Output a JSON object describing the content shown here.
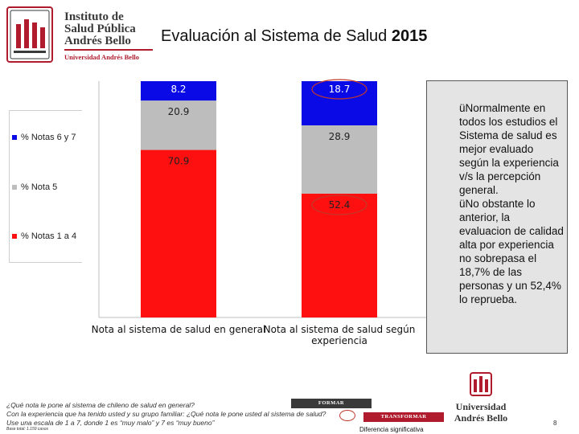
{
  "logo": {
    "lines": [
      "Instituto de",
      "Salud Pública",
      "Andrés Bello"
    ],
    "sub": "Universidad Andrés Bello"
  },
  "title": {
    "main": "Evaluación al Sistema de Salud",
    "year": "2015"
  },
  "chart_data": {
    "type": "bar",
    "stacked": true,
    "categories": [
      "Nota al sistema de salud en general",
      "Nota al sistema de salud según experiencia"
    ],
    "category_lines": [
      [
        "Nota al sistema de salud en general"
      ],
      [
        "Nota al sistema de salud según",
        "experiencia"
      ]
    ],
    "series": [
      {
        "name": "% Notas 1 a 4",
        "values": [
          70.9,
          52.4
        ],
        "color": "#ff1010"
      },
      {
        "name": "% Nota 5",
        "values": [
          20.9,
          28.9
        ],
        "color": "#bdbdbd"
      },
      {
        "name": "% Notas 6 y 7",
        "values": [
          8.2,
          18.7
        ],
        "color": "#0a0ae6"
      }
    ],
    "data_labels": [
      [
        "70.9",
        "20.9",
        "8.2"
      ],
      [
        "52.4",
        "28.9",
        "18.7"
      ]
    ],
    "highlighted": [
      "18.7",
      "52.4"
    ],
    "ylim": [
      0,
      100
    ],
    "legend_placement": "left"
  },
  "legend": {
    "items": [
      {
        "label": "% Notas 6 y 7",
        "color": "#0a0ae6"
      },
      {
        "label": "% Nota 5",
        "color": "#bdbdbd"
      },
      {
        "label": "% Notas 1 a 4",
        "color": "#ff1010"
      }
    ]
  },
  "notes": {
    "p1": "üNormalmente en todos los estudios el Sistema de salud es mejor evaluado según la experiencia v/s la percepción general.",
    "p2": "üNo obstante lo anterior, la evaluacion de calidad alta por experiencia no sobrepasa el 18,7% de las personas y un 52,4% lo reprueba."
  },
  "footer": {
    "q1": "¿Qué nota le pone al sistema de chileno de salud en general?",
    "q2": "Con la experiencia que ha tenido usted y su grupo familiar: ¿Qué nota le pone usted al sistema de salud?",
    "q3": "Use una escala de 1 a 7, donde 1 es “muy malo” y 7 es “muy bueno”",
    "base": "Base total: 1.159 casos",
    "tag1": "FORMAR",
    "tag2": "TRANSFORMAR",
    "diff_label": "Diferencia significativa",
    "uab_line1": "Universidad",
    "uab_line2": "Andrés Bello",
    "page_number": "8"
  },
  "colors": {
    "brand_red": "#b01c2e",
    "brand_dark": "#3a3a3a"
  }
}
